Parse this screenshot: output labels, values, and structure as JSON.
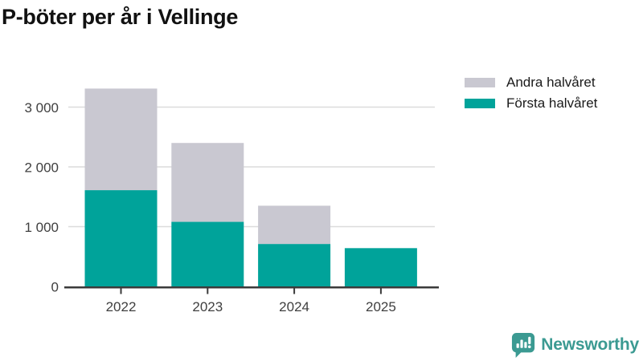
{
  "title": "P-böter per år i Vellinge",
  "legend": {
    "items": [
      {
        "label": "Andra halvåret",
        "color": "#c9c8d1"
      },
      {
        "label": "Första halvåret",
        "color": "#00a39a"
      }
    ]
  },
  "chart_data": {
    "type": "bar",
    "stacked": true,
    "title": "P-böter per år i Vellinge",
    "categories": [
      "2022",
      "2023",
      "2024",
      "2025"
    ],
    "series": [
      {
        "name": "Första halvåret",
        "color": "#00a39a",
        "values": [
          1610,
          1080,
          710,
          640
        ]
      },
      {
        "name": "Andra halvåret",
        "color": "#c9c8d1",
        "values": [
          1700,
          1320,
          640,
          0
        ]
      }
    ],
    "totals": [
      3310,
      2400,
      1350,
      640
    ],
    "xlabel": "",
    "ylabel": "",
    "ylim": [
      0,
      3450
    ],
    "y_ticks": [
      {
        "value": 0,
        "label": "0"
      },
      {
        "value": 1000,
        "label": "1 000"
      },
      {
        "value": 2000,
        "label": "2 000"
      },
      {
        "value": 3000,
        "label": "3 000"
      }
    ],
    "grid": true,
    "legend_position": "top-right"
  },
  "branding": {
    "name": "Newsworthy",
    "color": "#3b9a92"
  }
}
